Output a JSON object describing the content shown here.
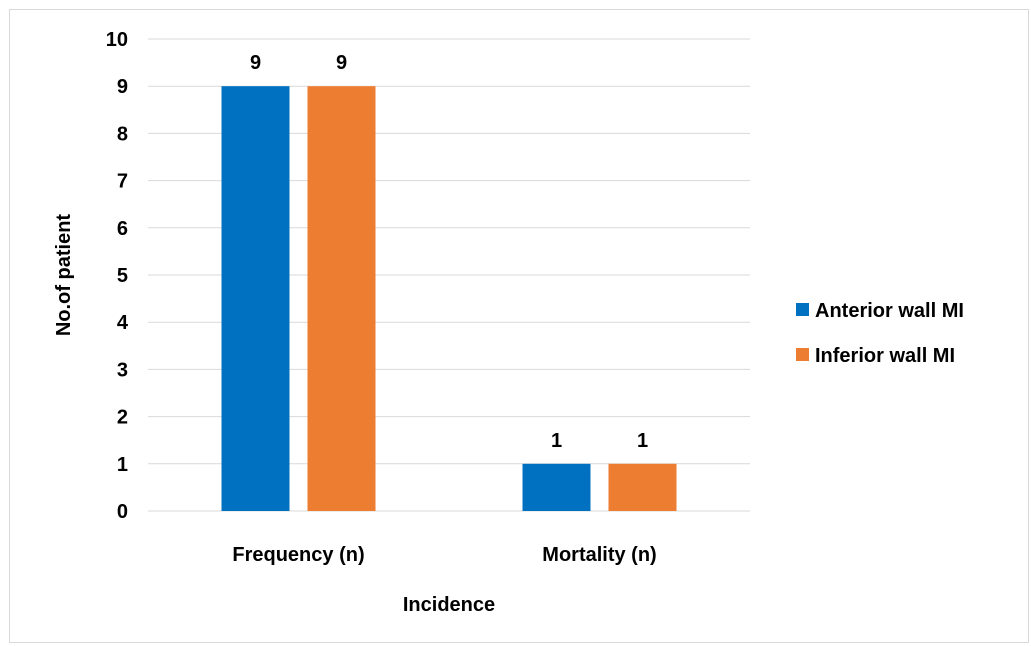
{
  "chart_data": {
    "type": "bar",
    "categories": [
      "Frequency (n)",
      "Mortality (n)"
    ],
    "series": [
      {
        "name": "Anterior wall MI",
        "values": [
          9,
          1
        ],
        "color": "#0070C0"
      },
      {
        "name": "Inferior wall MI",
        "values": [
          9,
          1
        ],
        "color": "#ED7D31"
      }
    ],
    "xlabel": "Incidence",
    "ylabel": "No.of patient",
    "ylim": [
      0,
      10
    ],
    "yticks": [
      0,
      1,
      2,
      3,
      4,
      5,
      6,
      7,
      8,
      9,
      10
    ],
    "grid": true,
    "legend": "right",
    "data_labels": true
  }
}
